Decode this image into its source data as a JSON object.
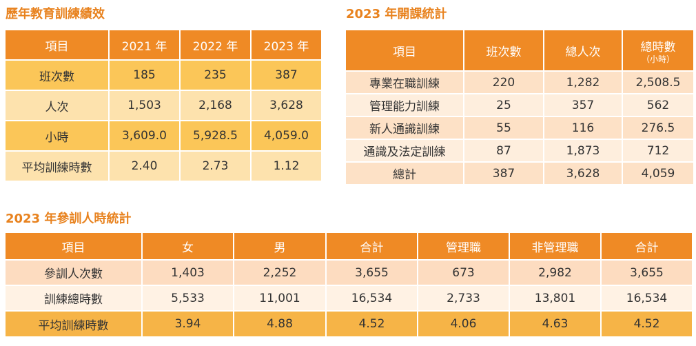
{
  "tables": [
    {
      "title": "歷年教育訓練績效",
      "header": [
        "項目",
        "2021 年",
        "2022 年",
        "2023 年"
      ],
      "rows": [
        [
          "班次數",
          "185",
          "235",
          "387"
        ],
        [
          "人次",
          "1,503",
          "2,168",
          "3,628"
        ],
        [
          "小時",
          "3,609.0",
          "5,928.5",
          "4,059.0"
        ],
        [
          "平均訓練時數",
          "2.40",
          "2.73",
          "1.12"
        ]
      ]
    },
    {
      "title": "2023 年開課統計",
      "header": [
        "項目",
        "班次數",
        "總人次",
        {
          "text": "總時數",
          "note": "（小時）"
        }
      ],
      "rows": [
        [
          "專業在職訓練",
          "220",
          "1,282",
          "2,508.5"
        ],
        [
          "管理能力訓練",
          "25",
          "357",
          "562"
        ],
        [
          "新人通識訓練",
          "55",
          "116",
          "276.5"
        ],
        [
          "通識及法定訓練",
          "87",
          "1,873",
          "712"
        ],
        [
          "總計",
          "387",
          "3,628",
          "4,059"
        ]
      ]
    },
    {
      "title": "2023 年參訓人時統計",
      "header": [
        "項目",
        "女",
        "男",
        "合計",
        "管理職",
        "非管理職",
        "合計"
      ],
      "rows": [
        [
          "參訓人次數",
          "1,403",
          "2,252",
          "3,655",
          "673",
          "2,982",
          "3,655"
        ],
        [
          "訓練總時數",
          "5,533",
          "11,001",
          "16,534",
          "2,733",
          "13,801",
          "16,534"
        ],
        [
          "平均訓練時數",
          "3.94",
          "4.88",
          "4.52",
          "4.06",
          "4.63",
          "4.52"
        ]
      ]
    }
  ]
}
